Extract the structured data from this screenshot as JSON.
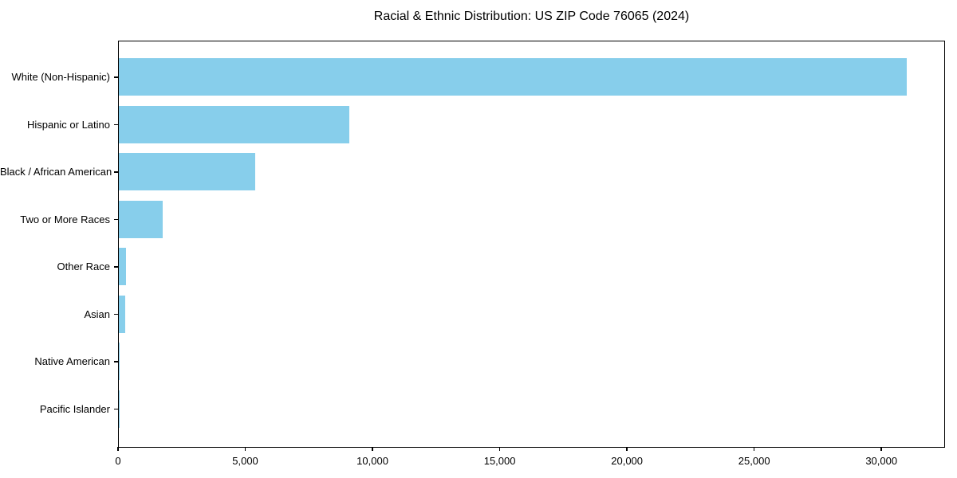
{
  "chart_data": {
    "type": "bar",
    "orientation": "horizontal",
    "title": "Racial & Ethnic Distribution: US ZIP Code 76065 (2024)",
    "categories": [
      "White (Non-Hispanic)",
      "Hispanic or Latino",
      "Black / African American",
      "Two or More Races",
      "Other Race",
      "Asian",
      "Native American",
      "Pacific Islander"
    ],
    "values": [
      30950,
      9060,
      5345,
      1720,
      270,
      240,
      40,
      15
    ],
    "xlabel": "",
    "ylabel": "",
    "xlim": [
      0,
      32500
    ],
    "x_ticks": [
      0,
      5000,
      10000,
      15000,
      20000,
      25000,
      30000
    ],
    "x_tick_labels": [
      "0",
      "5,000",
      "10,000",
      "15,000",
      "20,000",
      "25,000",
      "30,000"
    ],
    "bar_color": "#87ceeb",
    "spine_color": "#000000",
    "text_color": "#000000",
    "background_color": "#ffffff",
    "grid": false,
    "legend": null
  }
}
